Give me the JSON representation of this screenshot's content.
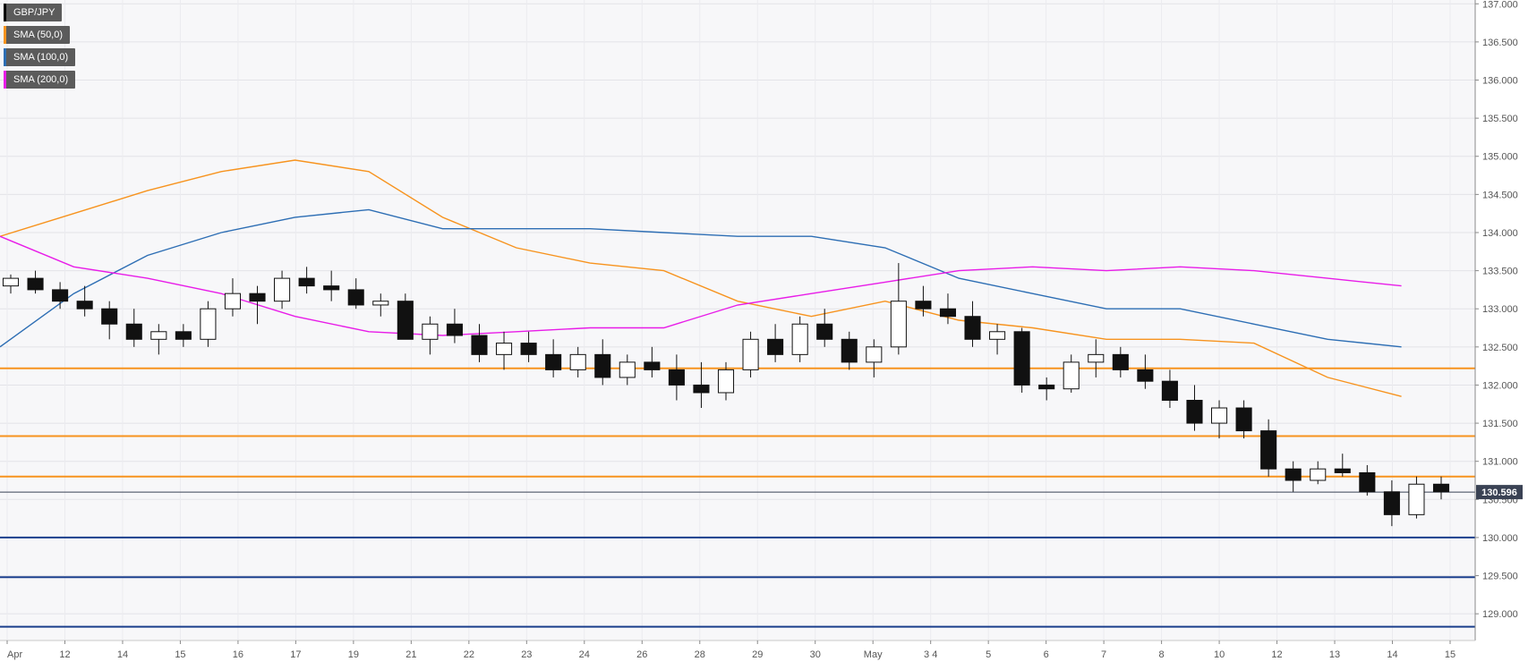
{
  "chart_data": {
    "type": "candlestick",
    "title": "",
    "instrument": "GBP/JPY",
    "xlabel": "",
    "ylabel": "",
    "ylim": [
      128.65,
      137.05
    ],
    "y_ticks": [
      "137.000",
      "136.500",
      "136.000",
      "135.500",
      "135.000",
      "134.500",
      "134.000",
      "133.500",
      "133.000",
      "132.500",
      "132.000",
      "131.500",
      "131.000",
      "130.500",
      "130.000",
      "129.500",
      "129.000"
    ],
    "x_labels": [
      "Apr",
      "12",
      "14",
      "15",
      "16",
      "17",
      "19",
      "21",
      "22",
      "23",
      "24",
      "26",
      "28",
      "29",
      "30",
      "May",
      "3 4",
      "5",
      "6",
      "7",
      "8",
      "10",
      "12",
      "13",
      "14",
      "15"
    ],
    "current_price": "130.596",
    "legend": [
      {
        "label": "GBP/JPY",
        "color": "#000000"
      },
      {
        "label": "SMA (50,0)",
        "color": "#f7931e"
      },
      {
        "label": "SMA (100,0)",
        "color": "#2d6eb4"
      },
      {
        "label": "SMA (200,0)",
        "color": "#e81ce8"
      }
    ],
    "horizontal_levels": [
      {
        "value": 132.22,
        "color": "#f7931e"
      },
      {
        "value": 131.33,
        "color": "#f7931e"
      },
      {
        "value": 130.8,
        "color": "#f7931e"
      },
      {
        "value": 130.0,
        "color": "#1a3e8c"
      },
      {
        "value": 129.48,
        "color": "#1a3e8c"
      },
      {
        "value": 128.83,
        "color": "#1a3e8c"
      }
    ],
    "sma": [
      {
        "name": "SMA (50,0)",
        "color": "#f7931e",
        "x": [
          0,
          0.05,
          0.1,
          0.15,
          0.2,
          0.25,
          0.3,
          0.35,
          0.4,
          0.45,
          0.5,
          0.55,
          0.6,
          0.65,
          0.7,
          0.75,
          0.8,
          0.85,
          0.9,
          0.95
        ],
        "values": [
          133.95,
          134.25,
          134.55,
          134.8,
          134.95,
          134.8,
          134.2,
          133.8,
          133.6,
          133.5,
          133.1,
          132.9,
          133.1,
          132.85,
          132.75,
          132.6,
          132.6,
          132.55,
          132.1,
          131.85
        ]
      },
      {
        "name": "SMA (100,0)",
        "color": "#2d6eb4",
        "x": [
          0,
          0.05,
          0.1,
          0.15,
          0.2,
          0.25,
          0.3,
          0.35,
          0.4,
          0.45,
          0.5,
          0.55,
          0.6,
          0.65,
          0.7,
          0.75,
          0.8,
          0.85,
          0.9,
          0.95
        ],
        "values": [
          132.5,
          133.2,
          133.7,
          134.0,
          134.2,
          134.3,
          134.05,
          134.05,
          134.05,
          134.0,
          133.95,
          133.95,
          133.8,
          133.4,
          133.2,
          133.0,
          133.0,
          132.8,
          132.6,
          132.5
        ]
      },
      {
        "name": "SMA (200,0)",
        "color": "#e81ce8",
        "x": [
          0,
          0.05,
          0.1,
          0.15,
          0.2,
          0.25,
          0.3,
          0.35,
          0.4,
          0.45,
          0.5,
          0.55,
          0.6,
          0.65,
          0.7,
          0.75,
          0.8,
          0.85,
          0.9,
          0.95
        ],
        "values": [
          133.95,
          133.55,
          133.4,
          133.2,
          132.9,
          132.7,
          132.65,
          132.7,
          132.75,
          132.75,
          133.05,
          133.2,
          133.35,
          133.5,
          133.55,
          133.5,
          133.55,
          133.5,
          133.4,
          133.3
        ]
      }
    ],
    "ohlc": [
      [
        133.3,
        133.45,
        133.2,
        133.4
      ],
      [
        133.4,
        133.5,
        133.2,
        133.25
      ],
      [
        133.25,
        133.35,
        133.0,
        133.1
      ],
      [
        133.1,
        133.3,
        132.9,
        133.0
      ],
      [
        133.0,
        133.1,
        132.6,
        132.8
      ],
      [
        132.8,
        133.0,
        132.5,
        132.6
      ],
      [
        132.6,
        132.8,
        132.4,
        132.7
      ],
      [
        132.7,
        132.8,
        132.5,
        132.6
      ],
      [
        132.6,
        133.1,
        132.5,
        133.0
      ],
      [
        133.0,
        133.4,
        132.9,
        133.2
      ],
      [
        133.2,
        133.3,
        132.8,
        133.1
      ],
      [
        133.1,
        133.5,
        133.0,
        133.4
      ],
      [
        133.4,
        133.55,
        133.2,
        133.3
      ],
      [
        133.3,
        133.5,
        133.1,
        133.25
      ],
      [
        133.25,
        133.4,
        133.0,
        133.05
      ],
      [
        133.05,
        133.2,
        132.9,
        133.1
      ],
      [
        133.1,
        133.2,
        132.6,
        132.6
      ],
      [
        132.6,
        132.9,
        132.4,
        132.8
      ],
      [
        132.8,
        133.0,
        132.55,
        132.65
      ],
      [
        132.65,
        132.8,
        132.3,
        132.4
      ],
      [
        132.4,
        132.7,
        132.2,
        132.55
      ],
      [
        132.55,
        132.7,
        132.3,
        132.4
      ],
      [
        132.4,
        132.6,
        132.1,
        132.2
      ],
      [
        132.2,
        132.5,
        132.1,
        132.4
      ],
      [
        132.4,
        132.6,
        132.0,
        132.1
      ],
      [
        132.1,
        132.4,
        132.0,
        132.3
      ],
      [
        132.3,
        132.5,
        132.1,
        132.2
      ],
      [
        132.2,
        132.4,
        131.8,
        132.0
      ],
      [
        132.0,
        132.3,
        131.7,
        131.9
      ],
      [
        131.9,
        132.3,
        131.8,
        132.2
      ],
      [
        132.2,
        132.7,
        132.1,
        132.6
      ],
      [
        132.6,
        132.8,
        132.3,
        132.4
      ],
      [
        132.4,
        132.9,
        132.3,
        132.8
      ],
      [
        132.8,
        133.0,
        132.5,
        132.6
      ],
      [
        132.6,
        132.7,
        132.2,
        132.3
      ],
      [
        132.3,
        132.6,
        132.1,
        132.5
      ],
      [
        132.5,
        133.6,
        132.4,
        133.1
      ],
      [
        133.1,
        133.3,
        132.9,
        133.0
      ],
      [
        133.0,
        133.2,
        132.8,
        132.9
      ],
      [
        132.9,
        133.1,
        132.5,
        132.6
      ],
      [
        132.6,
        132.8,
        132.4,
        132.7
      ],
      [
        132.7,
        132.75,
        131.9,
        132.0
      ],
      [
        132.0,
        132.1,
        131.8,
        131.95
      ],
      [
        131.95,
        132.4,
        131.9,
        132.3
      ],
      [
        132.3,
        132.6,
        132.1,
        132.4
      ],
      [
        132.4,
        132.5,
        132.1,
        132.2
      ],
      [
        132.2,
        132.4,
        131.95,
        132.05
      ],
      [
        132.05,
        132.2,
        131.7,
        131.8
      ],
      [
        131.8,
        132.0,
        131.4,
        131.5
      ],
      [
        131.5,
        131.8,
        131.3,
        131.7
      ],
      [
        131.7,
        131.8,
        131.3,
        131.4
      ],
      [
        131.4,
        131.55,
        130.8,
        130.9
      ],
      [
        130.9,
        131.0,
        130.6,
        130.75
      ],
      [
        130.75,
        131.0,
        130.7,
        130.9
      ],
      [
        130.9,
        131.1,
        130.8,
        130.85
      ],
      [
        130.85,
        130.95,
        130.55,
        130.6
      ],
      [
        130.6,
        130.75,
        130.15,
        130.3
      ],
      [
        130.3,
        130.8,
        130.25,
        130.7
      ],
      [
        130.7,
        130.8,
        130.5,
        130.6
      ]
    ]
  }
}
